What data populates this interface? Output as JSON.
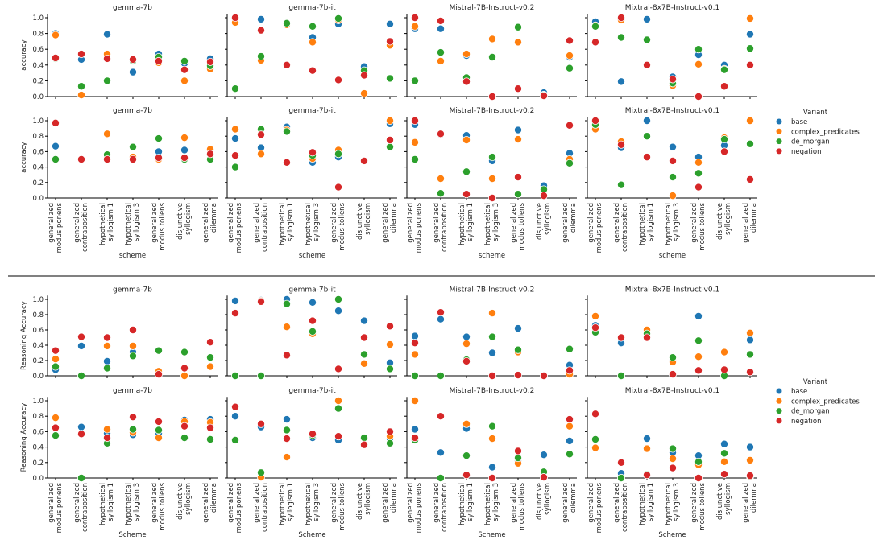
{
  "legend": {
    "title": "Variant",
    "entries": [
      "base",
      "complex_predicates",
      "de_morgan",
      "negation"
    ]
  },
  "colors": {
    "base": "#1f77b4",
    "complex_predicates": "#ff7f0e",
    "de_morgan": "#2ca02c",
    "negation": "#d62728"
  },
  "chart_data": [
    {
      "type": "scatter",
      "ylabel": "accuracy",
      "xlabel": "scheme",
      "ylim": [
        0,
        1.05
      ],
      "yticks": [
        "0.0",
        "0.2",
        "0.4",
        "0.6",
        "0.8",
        "1.0"
      ],
      "grid": false,
      "legend": "right",
      "categories": [
        [
          "generalized",
          "modus ponens"
        ],
        [
          "generalized",
          "contraposition"
        ],
        [
          "hypothetical",
          "syllogism 1"
        ],
        [
          "hypothetical",
          "syllogism 3"
        ],
        [
          "generalized",
          "modus tollens"
        ],
        [
          "disjunctive",
          "syllogism"
        ],
        [
          "generalized",
          "dilemma"
        ]
      ],
      "panels": [
        {
          "title": "gemma-7b",
          "values": {
            "base": [
              0.8,
              0.47,
              0.79,
              0.31,
              0.54,
              0.42,
              0.48
            ],
            "complex_predicates": [
              0.78,
              0.02,
              0.54,
              0.46,
              0.43,
              0.2,
              0.35
            ],
            "de_morgan": [
              0.48,
              0.13,
              0.2,
              0.45,
              0.5,
              0.45,
              0.39
            ],
            "negation": [
              0.49,
              0.54,
              0.48,
              0.47,
              0.45,
              0.34,
              0.44
            ]
          }
        },
        {
          "title": "gemma-7b-it",
          "values": {
            "base": [
              0.95,
              0.98,
              0.92,
              0.75,
              0.92,
              0.38,
              0.92
            ],
            "complex_predicates": [
              0.94,
              0.46,
              0.91,
              0.69,
              0.97,
              0.04,
              0.65
            ],
            "de_morgan": [
              0.1,
              0.51,
              0.93,
              0.89,
              0.99,
              0.33,
              0.23
            ],
            "negation": [
              1.0,
              0.84,
              0.4,
              0.33,
              0.21,
              0.27,
              0.7
            ]
          }
        },
        {
          "title": "Mistral-7B-Instruct-v0.2",
          "values": {
            "base": [
              0.86,
              0.86,
              0.52,
              0.73,
              0.69,
              0.05,
              0.5
            ],
            "complex_predicates": [
              0.89,
              0.45,
              0.54,
              0.73,
              0.69,
              0.02,
              0.52
            ],
            "de_morgan": [
              0.2,
              0.56,
              0.24,
              0.5,
              0.88,
              0.02,
              0.36
            ],
            "negation": [
              1.0,
              0.96,
              0.19,
              0.0,
              0.1,
              0.01,
              0.71
            ]
          }
        },
        {
          "title": "Mixtral-8x7B-Instruct-v0.1",
          "values": {
            "base": [
              0.95,
              0.19,
              0.98,
              0.25,
              0.53,
              0.4,
              0.79
            ],
            "complex_predicates": [
              0.9,
              0.97,
              0.72,
              0.14,
              0.41,
              0.35,
              0.99
            ],
            "de_morgan": [
              0.89,
              0.75,
              0.72,
              0.17,
              0.6,
              0.34,
              0.61
            ],
            "negation": [
              0.69,
              1.0,
              0.4,
              0.22,
              0.0,
              0.13,
              0.4
            ]
          }
        },
        {
          "title": "gemma-7b",
          "values": {
            "base": [
              0.67,
              0.5,
              0.56,
              0.52,
              0.6,
              0.62,
              0.58
            ],
            "complex_predicates": [
              0.5,
              0.5,
              0.83,
              0.53,
              0.5,
              0.78,
              0.63
            ],
            "de_morgan": [
              0.5,
              0.5,
              0.56,
              0.66,
              0.77,
              0.5,
              0.5
            ],
            "negation": [
              0.97,
              0.5,
              0.5,
              0.5,
              0.52,
              0.52,
              0.57
            ]
          }
        },
        {
          "title": "gemma-7b-it",
          "values": {
            "base": [
              0.77,
              0.65,
              0.92,
              0.46,
              0.53,
              0.48,
              0.96
            ],
            "complex_predicates": [
              0.89,
              0.57,
              0.88,
              0.51,
              0.62,
              0.48,
              1.0
            ],
            "de_morgan": [
              0.4,
              0.89,
              0.86,
              0.55,
              0.57,
              0.48,
              0.66
            ],
            "negation": [
              0.55,
              0.82,
              0.46,
              0.59,
              0.14,
              0.48,
              0.75
            ]
          }
        },
        {
          "title": "Mistral-7B-Instruct-v0.2",
          "values": {
            "base": [
              0.95,
              0.82,
              0.81,
              0.48,
              0.88,
              0.16,
              0.58
            ],
            "complex_predicates": [
              0.72,
              0.25,
              0.75,
              0.25,
              0.76,
              0.1,
              0.5
            ],
            "de_morgan": [
              0.5,
              0.06,
              0.34,
              0.53,
              0.05,
              0.11,
              0.45
            ],
            "negation": [
              1.0,
              0.83,
              0.05,
              0.0,
              0.27,
              0.03,
              0.94
            ]
          }
        },
        {
          "title": "Mixtral-8x7B-Instruct-v0.1",
          "values": {
            "base": [
              0.95,
              0.65,
              1.0,
              0.66,
              0.53,
              0.68,
              1.0
            ],
            "complex_predicates": [
              0.89,
              0.73,
              0.8,
              0.03,
              0.46,
              0.78,
              1.0
            ],
            "de_morgan": [
              0.95,
              0.17,
              0.8,
              0.27,
              0.32,
              0.76,
              0.7
            ],
            "negation": [
              1.0,
              0.69,
              0.53,
              0.48,
              0.14,
              0.6,
              0.24
            ]
          }
        }
      ]
    },
    {
      "type": "scatter",
      "ylabel": "Reasoning Accuracy",
      "xlabel": "Scheme",
      "ylim": [
        0,
        1.05
      ],
      "yticks": [
        "0.0",
        "0.2",
        "0.4",
        "0.6",
        "0.8",
        "1.0"
      ],
      "grid": false,
      "legend": "right",
      "categories": [
        [
          "generalized",
          "modus ponens"
        ],
        [
          "generalized",
          "contraposition"
        ],
        [
          "hypothetical",
          "syllogism 1"
        ],
        [
          "hypothetical",
          "syllogism 3"
        ],
        [
          "generalized",
          "modus tollens"
        ],
        [
          "disjunctive",
          "syllogism"
        ],
        [
          "generalized",
          "dilemma"
        ]
      ],
      "panels": [
        {
          "title": "gemma-7b",
          "values": {
            "base": [
              0.08,
              0.39,
              0.19,
              0.31,
              0.04,
              0.0,
              0.12
            ],
            "complex_predicates": [
              0.22,
              0.0,
              0.39,
              0.39,
              0.06,
              0.0,
              0.12
            ],
            "de_morgan": [
              0.12,
              0.0,
              0.1,
              0.26,
              0.33,
              0.31,
              0.24
            ],
            "negation": [
              0.33,
              0.51,
              0.5,
              0.6,
              0.02,
              0.1,
              0.44
            ]
          }
        },
        {
          "title": "gemma-7b-it",
          "values": {
            "base": [
              0.98,
              0.99,
              1.0,
              0.96,
              0.85,
              0.72,
              0.17
            ],
            "complex_predicates": [
              0.0,
              0.98,
              0.64,
              0.55,
              0.09,
              0.16,
              0.41
            ],
            "de_morgan": [
              0.0,
              0.0,
              0.94,
              0.58,
              1.0,
              0.28,
              0.09
            ],
            "negation": [
              0.82,
              0.97,
              0.27,
              0.72,
              0.09,
              0.5,
              0.65
            ]
          }
        },
        {
          "title": "Mistral-7B-Instruct-v0.2",
          "values": {
            "base": [
              0.52,
              0.74,
              0.51,
              0.3,
              0.62,
              0.0,
              0.14
            ],
            "complex_predicates": [
              0.28,
              0.0,
              0.42,
              0.82,
              0.31,
              0.0,
              0.02
            ],
            "de_morgan": [
              0.0,
              0.0,
              0.21,
              0.51,
              0.34,
              0.0,
              0.35
            ],
            "negation": [
              0.43,
              0.83,
              0.19,
              0.0,
              0.01,
              0.0,
              0.07
            ]
          }
        },
        {
          "title": "Mixtral-8x7B-Instruct-v0.1",
          "values": {
            "base": [
              0.66,
              0.43,
              0.55,
              0.2,
              0.78,
              0.01,
              0.47
            ],
            "complex_predicates": [
              0.78,
              0.0,
              0.6,
              0.18,
              0.25,
              0.31,
              0.56
            ],
            "de_morgan": [
              0.57,
              0.0,
              0.55,
              0.24,
              0.46,
              0.0,
              0.28
            ],
            "negation": [
              0.63,
              0.5,
              0.5,
              0.02,
              0.07,
              0.08,
              0.05
            ]
          }
        },
        {
          "title": "gemma-7b",
          "values": {
            "base": [
              0.55,
              0.66,
              0.58,
              0.56,
              0.58,
              0.75,
              0.76
            ],
            "complex_predicates": [
              0.78,
              0.57,
              0.63,
              0.59,
              0.52,
              0.73,
              0.72
            ],
            "de_morgan": [
              0.55,
              0.0,
              0.45,
              0.63,
              0.62,
              0.52,
              0.5
            ],
            "negation": [
              0.65,
              0.57,
              0.52,
              0.79,
              0.73,
              0.67,
              0.65
            ]
          }
        },
        {
          "title": "gemma-7b-it",
          "values": {
            "base": [
              0.8,
              0.66,
              0.76,
              0.52,
              0.49,
              0.43,
              0.51
            ],
            "complex_predicates": [
              0.49,
              0.01,
              0.27,
              0.55,
              1.0,
              0.52,
              0.54
            ],
            "de_morgan": [
              0.49,
              0.07,
              0.62,
              0.55,
              0.9,
              0.52,
              0.45
            ],
            "negation": [
              0.92,
              0.7,
              0.51,
              0.57,
              0.54,
              0.43,
              0.6
            ]
          }
        },
        {
          "title": "Mistral-7B-Instruct-v0.2",
          "values": {
            "base": [
              0.63,
              0.33,
              0.64,
              0.14,
              0.22,
              0.3,
              0.48
            ],
            "complex_predicates": [
              1.0,
              0.0,
              0.7,
              0.51,
              0.19,
              0.01,
              0.67
            ],
            "de_morgan": [
              0.49,
              0.0,
              0.29,
              0.67,
              0.26,
              0.08,
              0.31
            ],
            "negation": [
              0.52,
              0.8,
              0.04,
              0.0,
              0.35,
              0.01,
              0.76
            ]
          }
        },
        {
          "title": "Mixtral-8x7B-Instruct-v0.1",
          "values": {
            "base": [
              0.39,
              0.06,
              0.51,
              0.33,
              0.29,
              0.44,
              0.4
            ],
            "complex_predicates": [
              0.39,
              0.0,
              0.38,
              0.25,
              0.17,
              0.21,
              0.23
            ],
            "de_morgan": [
              0.5,
              0.0,
              0.05,
              0.38,
              0.21,
              0.32,
              0.02
            ],
            "negation": [
              0.83,
              0.2,
              0.04,
              0.13,
              0.0,
              0.05,
              0.03
            ]
          }
        }
      ]
    }
  ]
}
